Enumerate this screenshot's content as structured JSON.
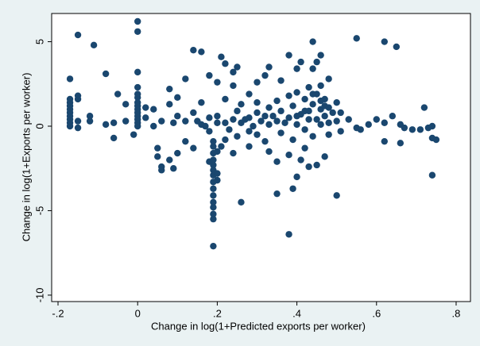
{
  "chart_data": {
    "type": "scatter",
    "x_label": "Change in log(1+Predicted exports per worker)",
    "y_label": "Change in log(1+Exports per worker)",
    "color": "#1a476f",
    "xlim": [
      -0.216,
      0.836
    ],
    "ylim": [
      -10.38,
      6.67
    ],
    "xticks": [
      {
        "value": -0.2,
        "label": "-.2"
      },
      0,
      {
        "value": 0.2,
        "label": ".2"
      },
      {
        "value": 0.4,
        "label": ".4"
      },
      {
        "value": 0.6,
        "label": ".6"
      },
      {
        "value": 0.8,
        "label": ".8"
      }
    ],
    "yticks": [
      -10,
      -5,
      0,
      5
    ],
    "x": [
      -0.17,
      -0.17,
      -0.17,
      -0.17,
      -0.17,
      -0.17,
      -0.17,
      -0.17,
      -0.17,
      -0.17,
      -0.15,
      -0.15,
      -0.15,
      -0.15,
      -0.15,
      -0.11,
      -0.12,
      -0.12,
      -0.08,
      -0.08,
      -0.06,
      -0.06,
      -0.05,
      -0.03,
      -0.03,
      -0.01,
      0,
      0,
      0,
      0,
      0,
      0,
      0,
      0,
      0,
      0,
      0,
      0,
      0,
      0,
      0.02,
      0.02,
      0.04,
      0.04,
      0.05,
      0.05,
      0.06,
      0.06,
      0.06,
      0.08,
      0.08,
      0.08,
      0.09,
      0.09,
      0.1,
      0.1,
      0.1,
      0.12,
      0.12,
      0.12,
      0.14,
      0.14,
      0.14,
      0.16,
      0.16,
      0.16,
      0.18,
      0.18,
      0.18,
      0.18,
      0.19,
      0.19,
      0.19,
      0.19,
      0.19,
      0.19,
      0.19,
      0.19,
      0.19,
      0.19,
      0.19,
      0.19,
      0.19,
      0.19,
      0.19,
      0.2,
      0.2,
      0.2,
      0.2,
      0.2,
      0.21,
      0.21,
      0.22,
      0.22,
      0.22,
      0.22,
      0.24,
      0.24,
      0.24,
      0.24,
      0.25,
      0.25,
      0.25,
      0.26,
      0.26,
      0.26,
      0.28,
      0.28,
      0.28,
      0.28,
      0.3,
      0.3,
      0.3,
      0.3,
      0.32,
      0.32,
      0.32,
      0.33,
      0.33,
      0.33,
      0.33,
      0.35,
      0.35,
      0.35,
      0.35,
      0.36,
      0.36,
      0.36,
      0.38,
      0.38,
      0.38,
      0.38,
      0.38,
      0.39,
      0.39,
      0.39,
      0.4,
      0.4,
      0.4,
      0.4,
      0.41,
      0.41,
      0.41,
      0.42,
      0.42,
      0.42,
      0.43,
      0.43,
      0.43,
      0.44,
      0.44,
      0.44,
      0.44,
      0.45,
      0.45,
      0.45,
      0.45,
      0.46,
      0.46,
      0.46,
      0.46,
      0.47,
      0.47,
      0.47,
      0.48,
      0.48,
      0.48,
      0.5,
      0.5,
      0.5,
      0.51,
      0.51,
      0.53,
      0.55,
      0.55,
      0.56,
      0.58,
      0.6,
      0.62,
      0.62,
      0.62,
      0.64,
      0.65,
      0.66,
      0.66,
      0.67,
      0.69,
      0.71,
      0.72,
      0.73,
      0.74,
      0.74,
      0.74,
      0.75,
      0.15,
      0.17,
      0.2,
      0.23,
      0.27,
      0.29,
      0.31,
      0.34,
      0.37,
      0.43,
      0.47,
      0.49,
      0.44,
      0.46,
      0.48,
      0.42,
      0.4
    ],
    "values": [
      2.8,
      1.6,
      1.4,
      1.2,
      1.0,
      0.8,
      0.6,
      0.4,
      0.2,
      0.0,
      5.4,
      1.8,
      1.6,
      0.3,
      -0.1,
      4.8,
      0.6,
      0.3,
      3.1,
      0.1,
      -0.7,
      0.2,
      1.9,
      1.3,
      0.3,
      -0.5,
      6.2,
      5.6,
      3.2,
      2.3,
      1.9,
      1.7,
      1.4,
      1.2,
      1.0,
      0.8,
      0.6,
      0.4,
      0.2,
      0.0,
      1.1,
      0.5,
      1.0,
      0.0,
      -1.3,
      -1.8,
      -2.4,
      -2.6,
      0.3,
      -2.0,
      2.2,
      1.3,
      -2.5,
      0.2,
      -1.6,
      1.7,
      0.6,
      2.8,
      -0.9,
      0.3,
      4.5,
      0.8,
      -1.3,
      4.4,
      1.4,
      0.1,
      0.5,
      -2.1,
      -0.3,
      3.0,
      -7.1,
      -5.5,
      -5.2,
      -4.8,
      -4.5,
      -4.1,
      -3.7,
      -3.3,
      -2.9,
      -2.6,
      -2.3,
      -2.0,
      -1.6,
      -1.2,
      -0.9,
      -3.2,
      -2.8,
      -1.5,
      0.6,
      2.6,
      4.1,
      -1.2,
      3.7,
      1.6,
      0.2,
      -0.8,
      3.2,
      2.4,
      -1.6,
      0.4,
      3.5,
      0.9,
      -0.6,
      -4.5,
      1.3,
      0.2,
      1.9,
      -1.2,
      0.5,
      -0.3,
      2.6,
      0.8,
      -0.5,
      1.4,
      3.0,
      -0.9,
      0.6,
      3.5,
      -1.5,
      0.1,
      1.1,
      -4.0,
      -2.1,
      1.5,
      0.3,
      2.7,
      -0.4,
      0.9,
      -6.4,
      4.2,
      1.8,
      0.5,
      -1.7,
      -3.7,
      -0.8,
      1.2,
      3.4,
      -3.0,
      0.1,
      2.0,
      3.8,
      -2.0,
      0.7,
      -1.3,
      1.6,
      -0.2,
      -2.4,
      2.3,
      0.9,
      5.0,
      3.4,
      -0.6,
      1.3,
      3.8,
      -2.3,
      0.4,
      1.9,
      4.2,
      2.4,
      0.1,
      1.0,
      -1.8,
      1.6,
      0.6,
      2.8,
      -0.5,
      1.1,
      -4.1,
      1.4,
      0.3,
      0.8,
      -0.3,
      0.4,
      5.2,
      -0.1,
      -0.2,
      0.1,
      0.4,
      5.0,
      0.2,
      -0.9,
      0.6,
      4.7,
      0.1,
      -1.0,
      -0.1,
      -0.2,
      -0.2,
      1.1,
      -0.1,
      -0.7,
      -2.9,
      0.0,
      -0.8,
      0.3,
      0.0,
      0.2,
      -0.2,
      0.4,
      0.0,
      0.3,
      0.6,
      0.2,
      0.4,
      1.2,
      0.8,
      1.9,
      1.5,
      0.2,
      0.9,
      0.6
    ]
  }
}
